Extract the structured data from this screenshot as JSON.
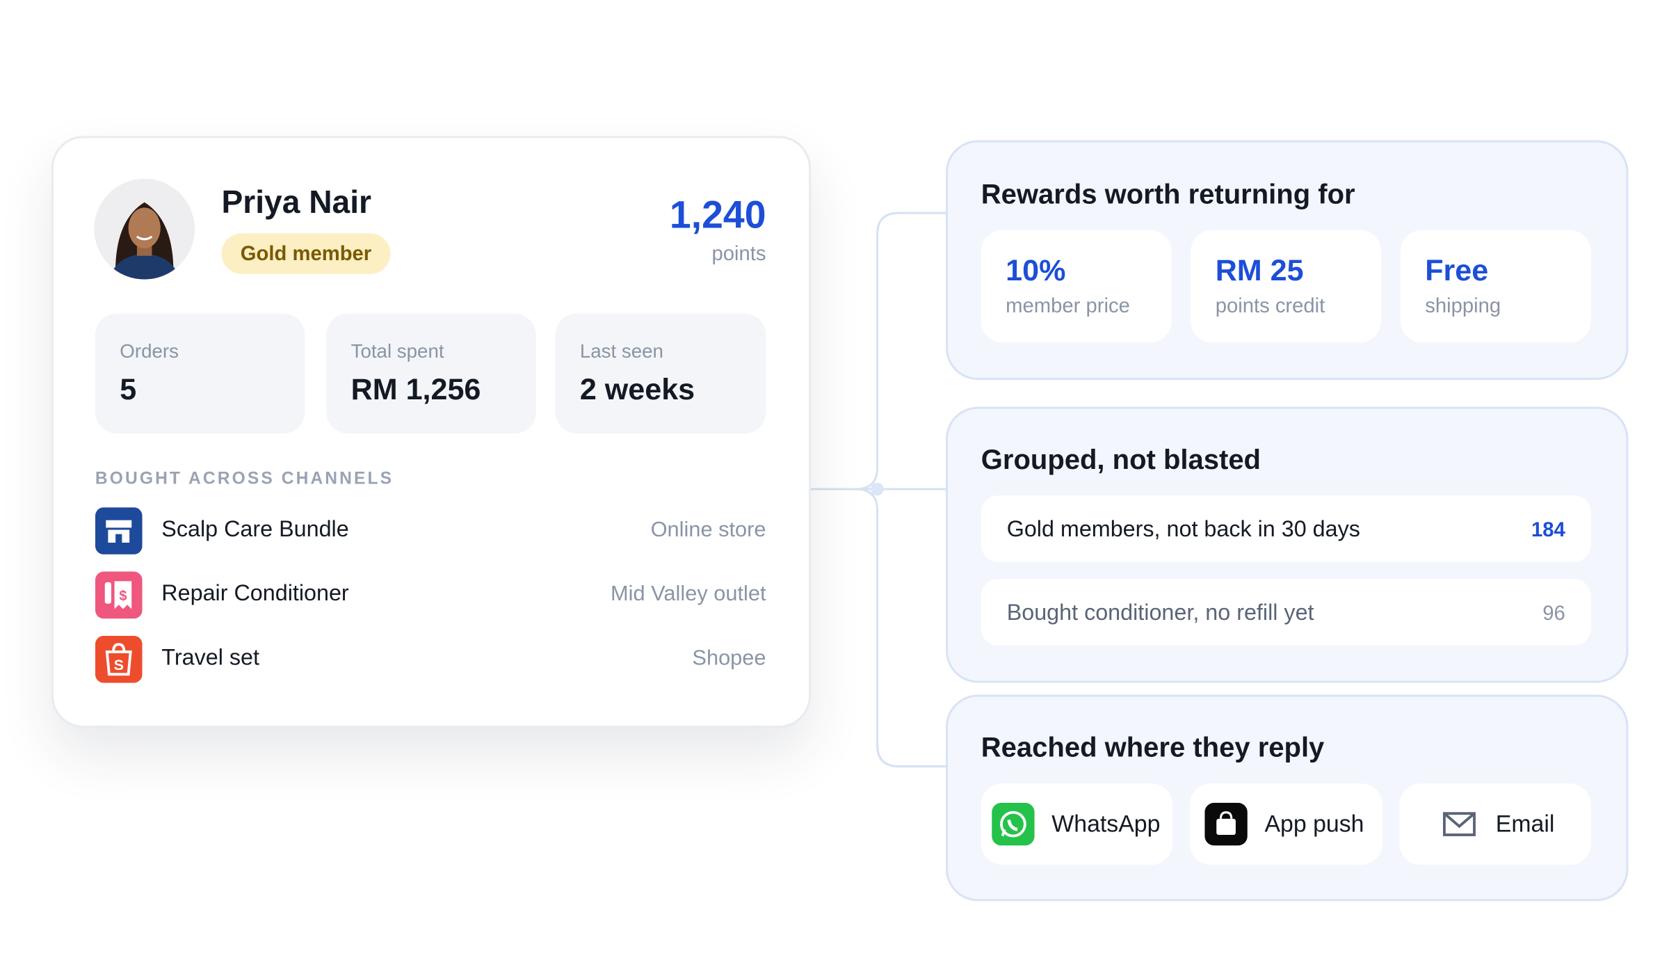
{
  "profile": {
    "name": "Priya Nair",
    "tier": "Gold member",
    "points": "1,240",
    "points_label": "points",
    "stats": [
      {
        "label": "Orders",
        "value": "5"
      },
      {
        "label": "Total spent",
        "value": "RM 1,256"
      },
      {
        "label": "Last seen",
        "value": "2 weeks"
      }
    ],
    "channels_heading": "BOUGHT ACROSS CHANNELS",
    "purchases": [
      {
        "item": "Scalp Care Bundle",
        "channel": "Online store"
      },
      {
        "item": "Repair Conditioner",
        "channel": "Mid Valley outlet"
      },
      {
        "item": "Travel set",
        "channel": "Shopee"
      }
    ]
  },
  "rewards": {
    "title": "Rewards worth returning for",
    "items": [
      {
        "value": "10%",
        "label": "member price"
      },
      {
        "value": "RM 25",
        "label": "points credit"
      },
      {
        "value": "Free",
        "label": "shipping"
      }
    ]
  },
  "segments": {
    "title": "Grouped, not blasted",
    "rows": [
      {
        "label": "Gold members, not back in 30 days",
        "count": 184
      },
      {
        "label": "Bought conditioner, no refill yet",
        "count": 96
      }
    ]
  },
  "reach": {
    "title": "Reached where they reply",
    "channels": [
      "WhatsApp",
      "App push",
      "Email"
    ]
  }
}
